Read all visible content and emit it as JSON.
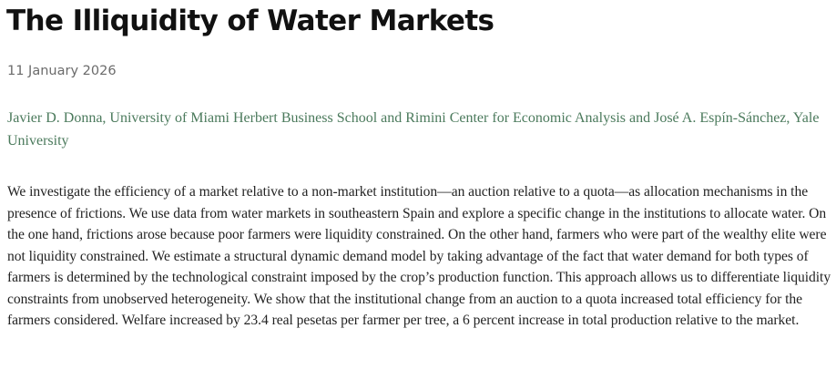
{
  "article": {
    "title": "The Illiquidity of Water Markets",
    "date": "11 January 2026",
    "authors": "Javier D. Donna, University of Miami Herbert Business School and Rimini Center for Economic Analysis and José A. Espín-Sánchez, Yale University",
    "abstract": "We investigate the efficiency of a market relative to a non-market institution—an auction relative to a quota—as allocation mechanisms in the presence of frictions. We use data from water markets in southeastern Spain and explore a specific change in the institutions to allocate water. On the one hand, frictions arose because poor farmers were liquidity constrained. On the other hand, farmers who were part of the wealthy elite were not liquidity constrained. We estimate a structural dynamic demand model by taking advantage of the fact that water demand for both types of farmers is determined by the technological constraint imposed by the crop’s production function. This approach allows us to differentiate liquidity constraints from unobserved heterogeneity. We show that the institutional change from an auction to a quota increased total efficiency for the farmers considered. Welfare increased by 23.4 real pesetas per farmer per tree, a 6 percent increase in total production relative to the market."
  },
  "colors": {
    "title": "#111111",
    "date": "#6b6b6b",
    "authors": "#4b7a5c",
    "body": "#222222"
  }
}
